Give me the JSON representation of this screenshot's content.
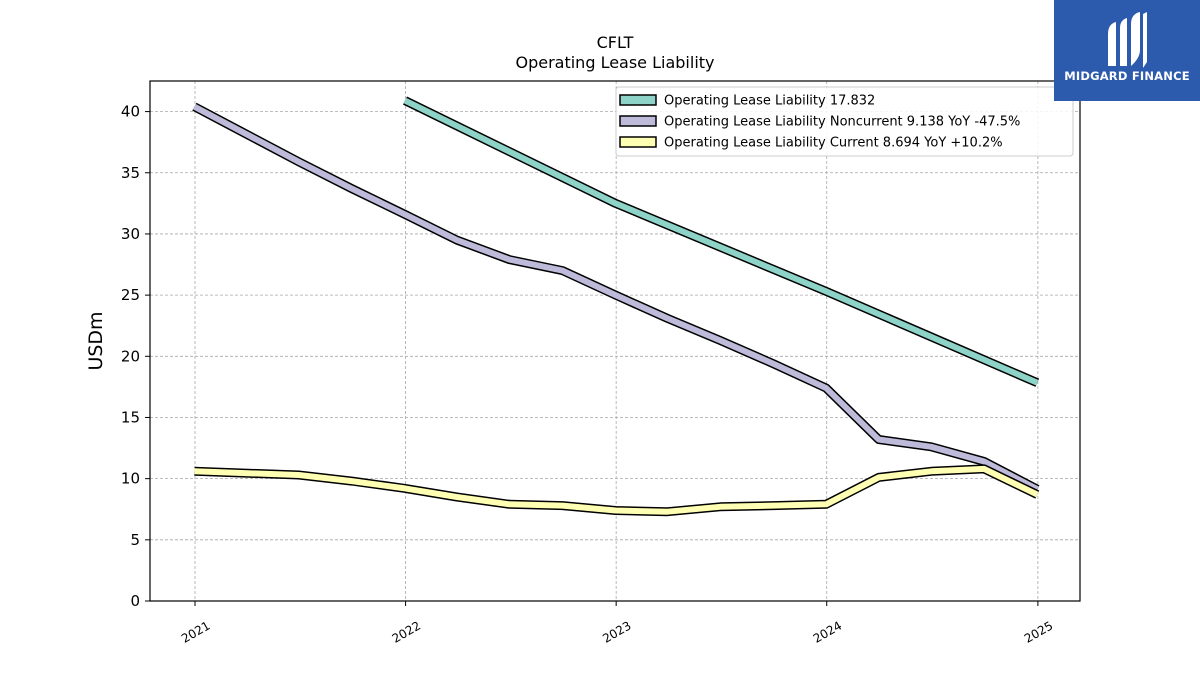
{
  "brand": {
    "name": "MIDGARD FINANCE",
    "logo_icon": "midgard-m-logo-icon",
    "background_color": "#2c5aad"
  },
  "chart_data": {
    "type": "line",
    "title": "CFLT",
    "subtitle": "Operating Lease Liability",
    "xlabel": "",
    "ylabel": "USDm",
    "xlim": [
      "2020-10-15",
      "2025-03-15"
    ],
    "ylim": [
      0,
      42.5
    ],
    "x_ticks": [
      "2021",
      "2022",
      "2023",
      "2024",
      "2025"
    ],
    "y_ticks": [
      0,
      5,
      10,
      15,
      20,
      25,
      30,
      35,
      40
    ],
    "grid": true,
    "legend_position": "top-right",
    "series": [
      {
        "name": "Operating Lease Liability",
        "legend_label": "Operating Lease Liability  17.832",
        "color": "#8dd3c7",
        "points": [
          [
            "2021-12-31",
            40.9
          ],
          [
            "2022-12-31",
            32.5
          ],
          [
            "2023-12-31",
            25.3
          ],
          [
            "2024-12-31",
            17.832
          ]
        ]
      },
      {
        "name": "Operating Lease Liability Noncurrent",
        "legend_label": "Operating Lease Liability Noncurrent  9.138 YoY -47.5%",
        "color": "#bebada",
        "points": [
          [
            "2020-12-31",
            40.4
          ],
          [
            "2021-06-30",
            35.9
          ],
          [
            "2021-09-30",
            33.7
          ],
          [
            "2021-12-31",
            31.6
          ],
          [
            "2022-03-31",
            29.5
          ],
          [
            "2022-06-30",
            27.9
          ],
          [
            "2022-09-30",
            27.0
          ],
          [
            "2022-12-31",
            25.0
          ],
          [
            "2023-03-31",
            23.1
          ],
          [
            "2023-06-30",
            21.3
          ],
          [
            "2023-09-30",
            19.4
          ],
          [
            "2023-12-31",
            17.4
          ],
          [
            "2024-03-31",
            13.2
          ],
          [
            "2024-06-30",
            12.6
          ],
          [
            "2024-09-30",
            11.4
          ],
          [
            "2024-12-31",
            9.138
          ]
        ]
      },
      {
        "name": "Operating Lease Liability Current",
        "legend_label": "Operating Lease Liability Current  8.694 YoY +10.2%",
        "color": "#ffffb3",
        "points": [
          [
            "2020-12-31",
            10.6
          ],
          [
            "2021-06-30",
            10.3
          ],
          [
            "2021-09-30",
            9.8
          ],
          [
            "2021-12-31",
            9.2
          ],
          [
            "2022-03-31",
            8.5
          ],
          [
            "2022-06-30",
            7.9
          ],
          [
            "2022-09-30",
            7.8
          ],
          [
            "2022-12-31",
            7.4
          ],
          [
            "2023-03-31",
            7.3
          ],
          [
            "2023-06-30",
            7.7
          ],
          [
            "2023-09-30",
            7.8
          ],
          [
            "2023-12-31",
            7.9
          ],
          [
            "2024-03-31",
            10.1
          ],
          [
            "2024-06-30",
            10.6
          ],
          [
            "2024-09-30",
            10.8
          ],
          [
            "2024-12-31",
            8.694
          ]
        ]
      }
    ]
  }
}
